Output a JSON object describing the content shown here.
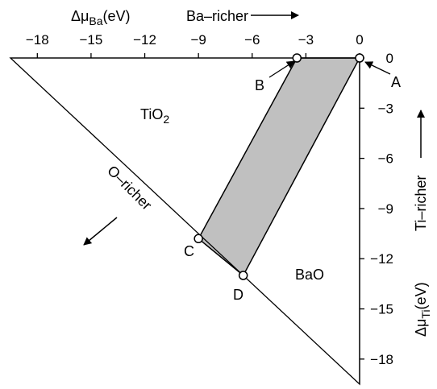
{
  "chart_data": {
    "type": "diagram",
    "x_axis": {
      "title_symbol": "Δμ",
      "title_subscript": "Ba",
      "title_unit": "(eV)",
      "direction_label": "Ba–richer",
      "ticks": [
        {
          "value": -18,
          "label": "−18"
        },
        {
          "value": -15,
          "label": "−15"
        },
        {
          "value": -12,
          "label": "−12"
        },
        {
          "value": -9,
          "label": "−9"
        },
        {
          "value": -6,
          "label": "−6"
        },
        {
          "value": -3,
          "label": "−3"
        },
        {
          "value": 0,
          "label": "0"
        }
      ],
      "range": [
        -19.5,
        0
      ]
    },
    "y_axis": {
      "title_symbol": "Δμ",
      "title_subscript": "Ti",
      "title_unit": "(eV)",
      "direction_label": "Ti–richer",
      "ticks": [
        {
          "value": 0,
          "label": "0"
        },
        {
          "value": -3,
          "label": "−3"
        },
        {
          "value": -6,
          "label": "−6"
        },
        {
          "value": -9,
          "label": "−9"
        },
        {
          "value": -12,
          "label": "−12"
        },
        {
          "value": -15,
          "label": "−15"
        },
        {
          "value": -18,
          "label": "−18"
        }
      ],
      "range": [
        -19.5,
        0
      ]
    },
    "region_labels": {
      "tio2": {
        "text": "TiO",
        "subscript": "2"
      },
      "bao": {
        "text": "BaO"
      },
      "o_richer": {
        "text": "O–richer"
      }
    },
    "stable_region": {
      "color": "#c0c0c0",
      "vertices": [
        {
          "id": "A",
          "label": "A",
          "x": 0.0,
          "y": 0.0
        },
        {
          "id": "B",
          "label": "B",
          "x": -3.5,
          "y": 0.0
        },
        {
          "id": "C",
          "label": "C",
          "x": -9.0,
          "y": -10.8
        },
        {
          "id": "D",
          "label": "D",
          "x": -6.5,
          "y": -13.0
        }
      ]
    },
    "triangle_vertices": [
      {
        "x": -19.5,
        "y": 0.0
      },
      {
        "x": 0.0,
        "y": 0.0
      },
      {
        "x": 0.0,
        "y": -19.5
      }
    ]
  }
}
